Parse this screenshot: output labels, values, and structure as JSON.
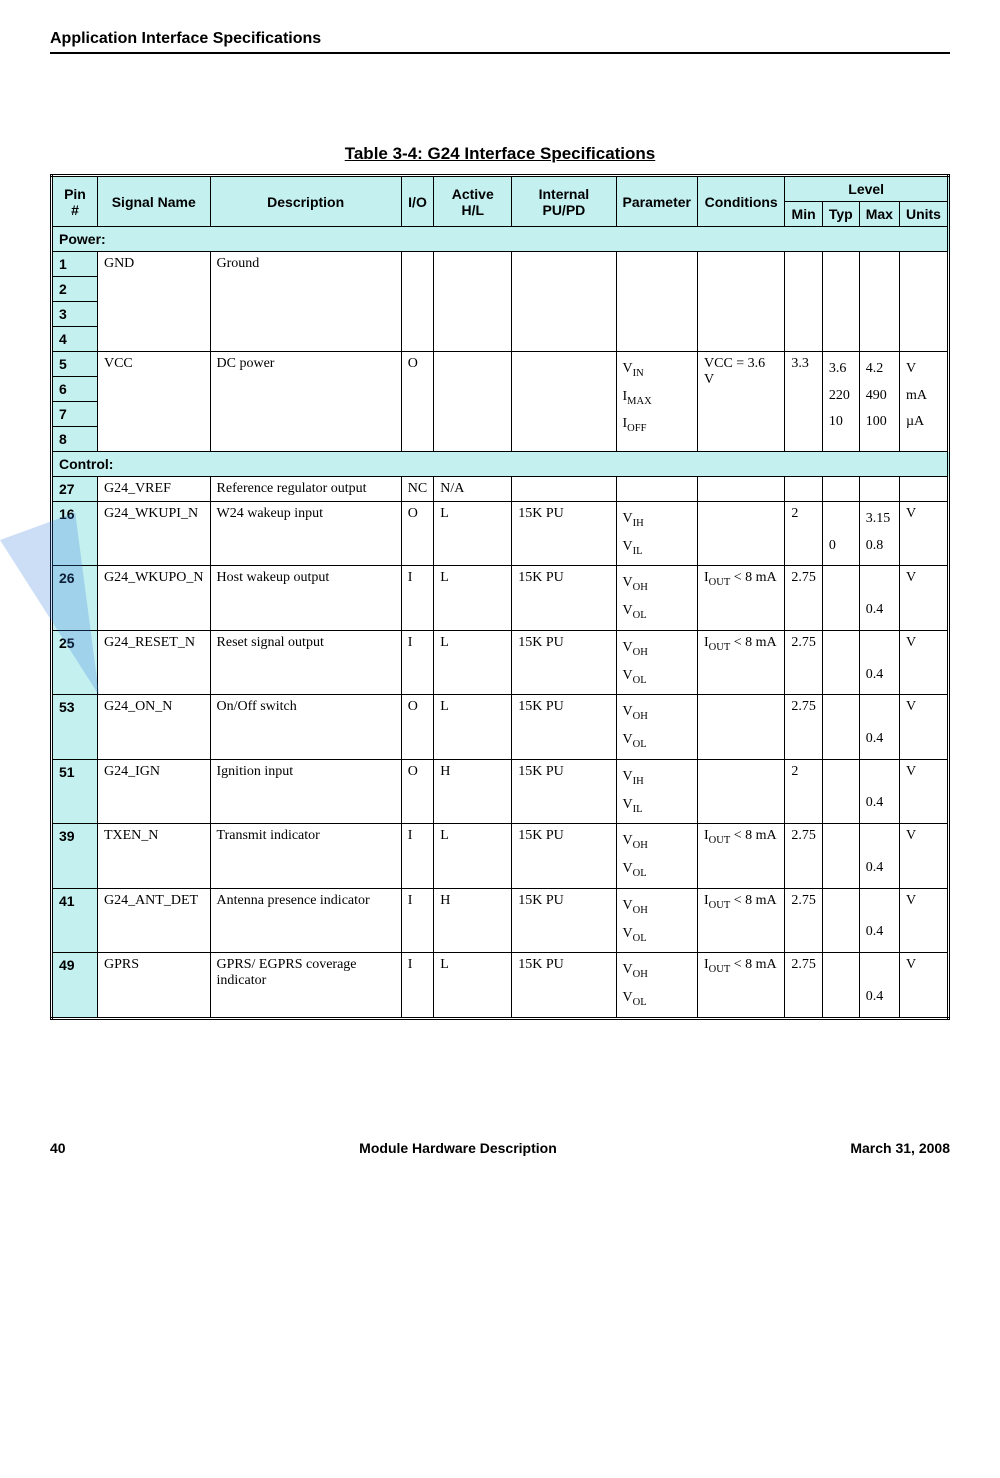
{
  "header": {
    "title": "Application Interface Specifications"
  },
  "table": {
    "caption": "Table 3-4: G24 Interface Specifications",
    "columns": {
      "pin": "Pin #",
      "signal": "Signal Name",
      "desc": "Description",
      "io": "I/O",
      "active": "Active H/L",
      "pupd": "Internal PU/PD",
      "param": "Parameter",
      "cond": "Conditions",
      "level": "Level",
      "min": "Min",
      "typ": "Typ",
      "max": "Max",
      "units": "Units"
    },
    "sections": {
      "power": "Power:",
      "control": "Control:"
    },
    "gnd": {
      "pins": [
        "1",
        "2",
        "3",
        "4"
      ],
      "signal": "GND",
      "desc": "Ground"
    },
    "vcc": {
      "pins": [
        "5",
        "6",
        "7",
        "8"
      ],
      "signal": "VCC",
      "desc": "DC power",
      "io": "O",
      "param_html": "V<sub>IN</sub><br>I<sub>MAX</sub><br>I<sub>OFF</sub>",
      "cond": "VCC = 3.6 V",
      "min": "3.3",
      "typ_html": "3.6<br>220<br>10",
      "max_html": "4.2<br>490<br>100",
      "units_html": "V<br>mA<br>µA"
    },
    "rows": [
      {
        "pin": "27",
        "signal": "G24_VREF",
        "desc": "Reference regulator output",
        "io": "NC",
        "active": "N/A",
        "pupd": "",
        "param": "",
        "cond": "",
        "min": "",
        "typ": "",
        "max": "",
        "units": ""
      },
      {
        "pin": "16",
        "signal": "G24_WKUPI_N",
        "desc": "W24 wakeup input",
        "io": "O",
        "active": "L",
        "pupd": "15K PU",
        "param_html": "V<sub>IH</sub><br>V<sub>IL</sub>",
        "cond": "",
        "min": "2",
        "typ_html": "<br>0",
        "max_html": "3.15<br>0.8",
        "units": "V"
      },
      {
        "pin": "26",
        "signal": "G24_WKUPO_N",
        "desc": "Host wakeup output",
        "io": "I",
        "active": "L",
        "pupd": "15K PU",
        "param_html": "V<sub>OH</sub><br>V<sub>OL</sub>",
        "cond_html": "I<sub>OUT</sub> < 8 mA",
        "min": "2.75",
        "typ": "",
        "max_html": "<br>0.4",
        "units": "V"
      },
      {
        "pin": "25",
        "signal": "G24_RESET_N",
        "desc": "Reset signal output",
        "io": "I",
        "active": "L",
        "pupd": "15K PU",
        "param_html": "V<sub>OH</sub><br>V<sub>OL</sub>",
        "cond_html": "I<sub>OUT</sub> < 8 mA",
        "min": "2.75",
        "typ": "",
        "max_html": "<br>0.4",
        "units": "V"
      },
      {
        "pin": "53",
        "signal": "G24_ON_N",
        "desc": "On/Off switch",
        "io": "O",
        "active": "L",
        "pupd": "15K PU",
        "param_html": "V<sub>OH</sub><br>V<sub>OL</sub>",
        "cond": "",
        "min": "2.75",
        "typ": "",
        "max_html": "<br>0.4",
        "units": "V"
      },
      {
        "pin": "51",
        "signal": "G24_IGN",
        "desc": "Ignition input",
        "io": "O",
        "active": "H",
        "pupd": "15K PU",
        "param_html": "V<sub>IH</sub><br>V<sub>IL</sub>",
        "cond": "",
        "min": "2",
        "typ": "",
        "max_html": "<br>0.4",
        "units": "V"
      },
      {
        "pin": "39",
        "signal": "TXEN_N",
        "desc": "Transmit indicator",
        "io": "I",
        "active": "L",
        "pupd": "15K PU",
        "param_html": "V<sub>OH</sub><br>V<sub>OL</sub>",
        "cond_html": "I<sub>OUT</sub> < 8 mA",
        "min": "2.75",
        "typ": "",
        "max_html": "<br>0.4",
        "units": "V"
      },
      {
        "pin": "41",
        "signal": "G24_ANT_DET",
        "desc": "Antenna presence indicator",
        "io": "I",
        "active": "H",
        "pupd": "15K PU",
        "param_html": "V<sub>OH</sub><br>V<sub>OL</sub>",
        "cond_html": "I<sub>OUT</sub> < 8 mA",
        "min": "2.75",
        "typ": "",
        "max_html": "<br>0.4",
        "units": "V"
      },
      {
        "pin": "49",
        "signal": "GPRS",
        "desc": "GPRS/ EGPRS coverage indicator",
        "io": "I",
        "active": "L",
        "pupd": "15K PU",
        "param_html": "V<sub>OH</sub><br>V<sub>OL</sub>",
        "cond_html": "I<sub>OUT</sub> < 8 mA",
        "min": "2.75",
        "typ": "",
        "max_html": "<br>0.4",
        "units": "V"
      }
    ]
  },
  "footer": {
    "page": "40",
    "center": "Module Hardware Description",
    "date": "March 31, 2008"
  }
}
